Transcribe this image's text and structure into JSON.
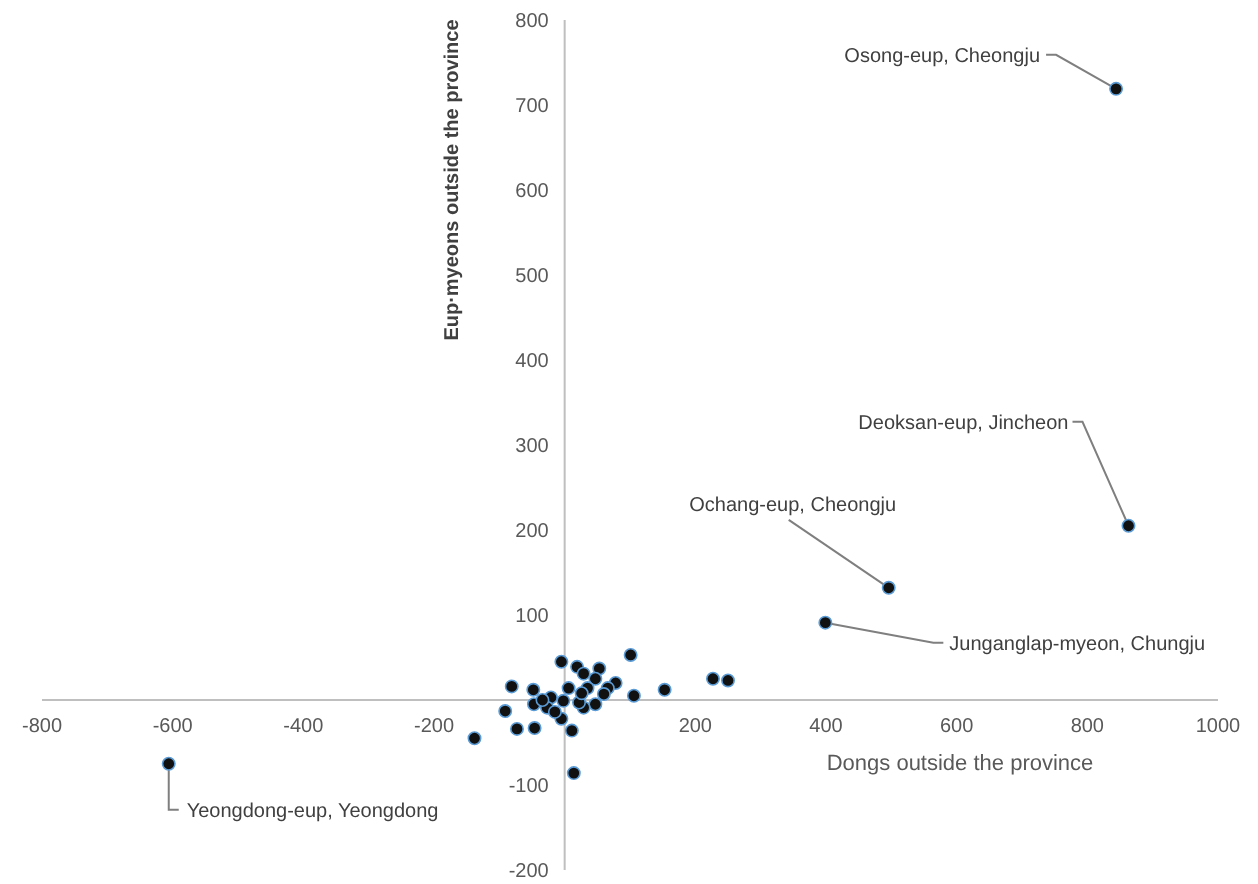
{
  "chart_data": {
    "type": "scatter",
    "xlabel": "Dongs outside the province",
    "ylabel": "Eup·myeons outside the province",
    "xlim": [
      -800,
      1000
    ],
    "ylim": [
      -200,
      800
    ],
    "xticks": [
      -800,
      -600,
      -400,
      -200,
      200,
      400,
      600,
      800,
      1000
    ],
    "yticks": [
      -200,
      -100,
      100,
      200,
      300,
      400,
      500,
      600,
      700,
      800
    ],
    "grid": false,
    "marker": "circle",
    "series": [
      {
        "color": "#111111",
        "x": [
          844,
          863,
          496,
          399,
          -606,
          101,
          -5,
          19,
          53,
          29,
          227,
          250,
          153,
          106,
          -81,
          -48,
          -91,
          -47,
          -73,
          -46,
          -138,
          11,
          14,
          -5,
          78,
          47,
          66,
          47,
          29,
          -21,
          -27,
          -15,
          22,
          35,
          60,
          6,
          -34,
          -2,
          26
        ],
        "values": [
          719,
          205,
          132,
          91,
          -75,
          53,
          45,
          39,
          37,
          31,
          25,
          23,
          12,
          5,
          16,
          12,
          -13,
          -5,
          -34,
          -33,
          -45,
          -36,
          -86,
          -22,
          20,
          25,
          14,
          -5,
          -9,
          3,
          -9,
          -14,
          -3,
          14,
          7,
          14,
          0,
          -1,
          8
        ]
      }
    ],
    "annotations": [
      {
        "text": "Osong-eup, Cheongju",
        "x": 844,
        "y": 719
      },
      {
        "text": "Deoksan-eup, Jincheon",
        "x": 863,
        "y": 205
      },
      {
        "text": "Ochang-eup, Cheongju",
        "x": 496,
        "y": 132
      },
      {
        "text": "Junganglap-myeon, Chungju",
        "x": 399,
        "y": 91
      },
      {
        "text": "Yeongdong-eup, Yeongdong",
        "x": -606,
        "y": -75
      }
    ]
  }
}
